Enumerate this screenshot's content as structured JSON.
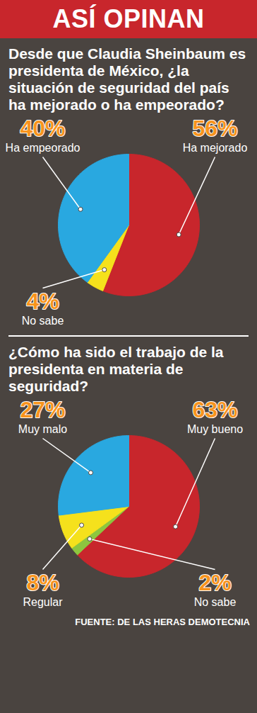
{
  "header": "ASÍ OPINAN",
  "source": "FUENTE: DE LAS HERAS DEMOTECNIA",
  "chart_data": [
    {
      "type": "pie",
      "title": "Desde que Claudia Sheinbaum es presidenta de México, ¿la situación de seguridad del país ha mejorado o ha empeorado?",
      "categories": [
        "Ha mejorado",
        "No sabe",
        "Ha empeorado"
      ],
      "values": [
        56,
        4,
        40
      ],
      "value_labels": [
        "56%",
        "4%",
        "40%"
      ],
      "colors": [
        "#c8262c",
        "#f5e11c",
        "#29a8e0"
      ],
      "data_labels": true
    },
    {
      "type": "pie",
      "title": "¿Cómo ha sido el trabajo de la presidenta en materia de seguridad?",
      "categories": [
        "Muy bueno",
        "No sabe",
        "Regular",
        "Muy malo"
      ],
      "values": [
        63,
        2,
        8,
        27
      ],
      "value_labels": [
        "63%",
        "2%",
        "8%",
        "27%"
      ],
      "colors": [
        "#c8262c",
        "#8dc63f",
        "#f5e11c",
        "#29a8e0"
      ],
      "data_labels": true
    }
  ]
}
